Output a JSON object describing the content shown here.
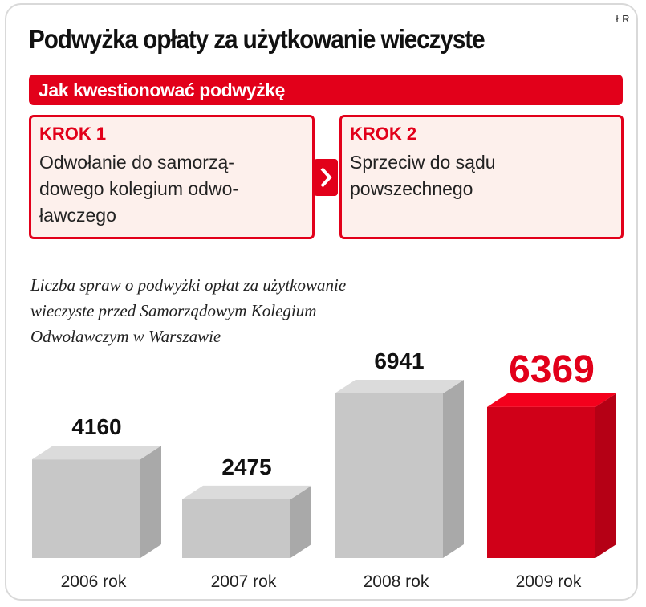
{
  "credit": "ŁR",
  "title": "Podwyżka opłaty za użytkowanie wieczyste",
  "banner": "Jak kwestionować podwyżkę",
  "steps": [
    {
      "label": "KROK 1",
      "lines": [
        "Odwołanie do samorzą-",
        "dowego kolegium odwo-",
        "ławczego"
      ]
    },
    {
      "label": "KROK 2",
      "lines": [
        "Sprzeciw do sądu",
        "powszechnego"
      ]
    }
  ],
  "chevron_icon": "chevron-right-icon",
  "subtitle_lines": [
    "Liczba spraw o podwyżki opłat za użytkowanie",
    "wieczyste przed Samorządowym  Kolegium",
    "Odwoławczym w Warszawie"
  ],
  "colors": {
    "accent": "#e2001a",
    "step_background": "#fdf0ec",
    "bar_gray": "#c7c7c7",
    "bar_highlight": "#e2001a"
  },
  "chart_data": {
    "type": "bar",
    "categories": [
      "2006 rok",
      "2007 rok",
      "2008 rok",
      "2009 rok"
    ],
    "values": [
      4160,
      2475,
      6941,
      6369
    ],
    "value_labels": [
      "4160",
      "2475",
      "6941",
      "6369"
    ],
    "highlight_index": 3,
    "title": "Liczba spraw o podwyżki opłat za użytkowanie wieczyste przed Samorządowym  Kolegium Odwoławczym w Warszawie",
    "xlabel": "",
    "ylabel": "",
    "ylim": [
      0,
      7000
    ],
    "grid": false,
    "legend": "none"
  }
}
